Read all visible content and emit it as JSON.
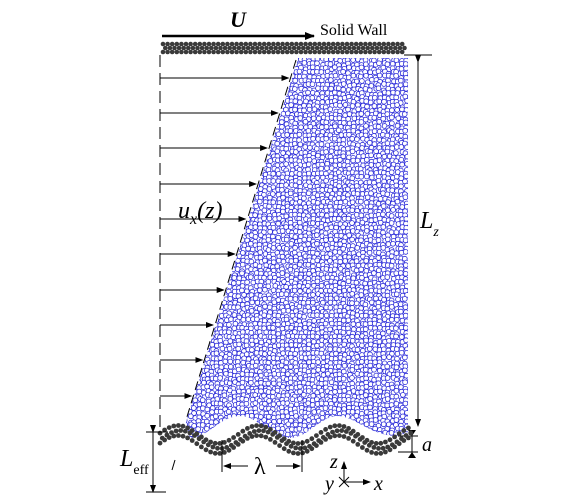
{
  "labels": {
    "velocity": "U",
    "wall": "Solid Wall",
    "profile_base": "u",
    "profile_sub": "x",
    "profile_arg": "(z)",
    "lz_base": "L",
    "lz_sub": "z",
    "leff_base": "L",
    "leff_sub": "eff",
    "wavelength": "λ",
    "amplitude": "a",
    "axis_z": "z",
    "axis_y": "y",
    "axis_x": "x"
  },
  "colors": {
    "fluid_stroke": "#2a2ad8",
    "wall_atom": "#3a3a3a",
    "line": "#000000"
  }
}
